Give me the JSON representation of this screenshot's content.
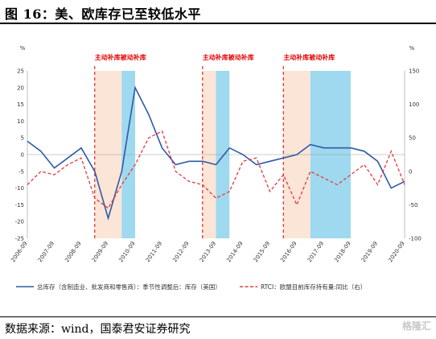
{
  "header": {
    "title": "图 16：美、欧库存已至较低水平"
  },
  "footer": {
    "source": "数据来源：wind，国泰君安证券研究",
    "watermark": "格隆汇"
  },
  "chart_data": {
    "type": "line",
    "x": [
      "2006-09",
      "2007-03",
      "2007-09",
      "2008-03",
      "2008-09",
      "2009-03",
      "2009-09",
      "2010-03",
      "2010-09",
      "2011-03",
      "2011-09",
      "2012-03",
      "2012-09",
      "2013-03",
      "2013-09",
      "2014-03",
      "2014-09",
      "2015-03",
      "2015-09",
      "2016-03",
      "2016-09",
      "2017-03",
      "2017-09",
      "2018-03",
      "2018-09",
      "2019-03",
      "2019-09",
      "2020-03",
      "2020-09"
    ],
    "x_tick_labels": [
      "2006-09",
      "2007-09",
      "2008-09",
      "2009-09",
      "2010-09",
      "2011-09",
      "2012-09",
      "2013-09",
      "2014-09",
      "2015-09",
      "2016-09",
      "2017-09",
      "2018-09",
      "2019-09",
      "2020-09"
    ],
    "left_axis": {
      "unit": "%",
      "ylim": [
        -25,
        25
      ],
      "ticks": [
        25,
        20,
        15,
        10,
        5,
        0,
        -5,
        -10,
        -15,
        -20,
        -25
      ]
    },
    "right_axis": {
      "unit": "%",
      "ylim": [
        -100,
        150
      ],
      "ticks": [
        150,
        100,
        50,
        0,
        -50,
        -100
      ]
    },
    "series": [
      {
        "name": "总库存（含制造业、批发商和零售商）：季节性调整后：库存（美国）",
        "axis": "left",
        "color": "#2e5aa8",
        "style": "solid",
        "values": [
          4,
          1,
          -4,
          -1,
          2,
          -5,
          -19,
          -5,
          20,
          12,
          2,
          -3,
          -2,
          -2,
          -3,
          2,
          0,
          -3,
          -2,
          -1,
          0,
          3,
          2,
          2,
          2,
          1,
          -2,
          -10,
          -8
        ]
      },
      {
        "name": "RTCI：欧盟目前库存持有量:同比（右）",
        "axis": "right",
        "color": "#e8383d",
        "style": "dashed",
        "values": [
          -20,
          0,
          -5,
          10,
          20,
          -40,
          -55,
          -20,
          10,
          50,
          60,
          0,
          -15,
          -20,
          -40,
          -30,
          15,
          20,
          -30,
          -5,
          -50,
          0,
          -10,
          -20,
          -5,
          10,
          -20,
          30,
          -20
        ]
      }
    ],
    "shaded_periods": [
      {
        "label": "主动补库",
        "start": "2009-03",
        "end": "2010-03",
        "color": "#fbe5d6"
      },
      {
        "label": "被动补库",
        "start": "2010-03",
        "end": "2010-09",
        "color": "#9fd9ef"
      },
      {
        "label": "主动补库",
        "start": "2013-03",
        "end": "2013-09",
        "color": "#fbe5d6"
      },
      {
        "label": "被动补库",
        "start": "2013-09",
        "end": "2014-03",
        "color": "#9fd9ef"
      },
      {
        "label": "主动补库",
        "start": "2016-03",
        "end": "2017-03",
        "color": "#fbe5d6"
      },
      {
        "label": "被动补库",
        "start": "2017-03",
        "end": "2018-09",
        "color": "#9fd9ef"
      }
    ],
    "annotations": [
      "主动补库被动补库",
      "主动补库被动补库",
      "主动补库被动补库"
    ],
    "legend_position": "bottom"
  }
}
